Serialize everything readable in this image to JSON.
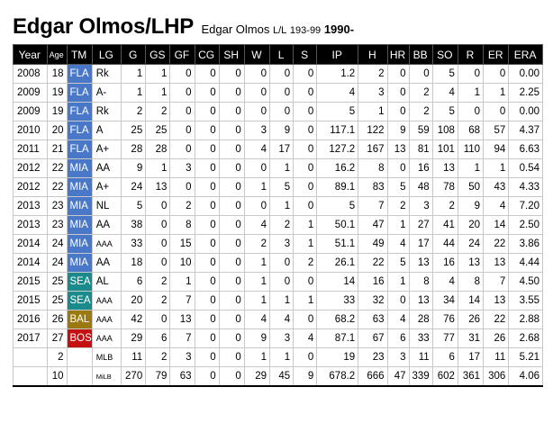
{
  "player": {
    "name": "Edgar Olmos/LHP",
    "sub_name": "Edgar Olmos",
    "bats_throws": "L/L",
    "height_weight": "193-99",
    "born": "1990-"
  },
  "columns": [
    "Year",
    "Age",
    "TM",
    "LG",
    "G",
    "GS",
    "GF",
    "CG",
    "SH",
    "W",
    "L",
    "S",
    "IP",
    "H",
    "HR",
    "BB",
    "SO",
    "R",
    "ER",
    "ERA"
  ],
  "team_colors": {
    "FLA": "#4a78c8",
    "MIA": "#4a78c8",
    "SEA": "#1a8a8a",
    "BAL": "#9a7a10",
    "BOS": "#c41010"
  },
  "rows": [
    {
      "year": "2008",
      "age": "18",
      "tm": "FLA",
      "lg": "Rk",
      "g": "1",
      "gs": "1",
      "gf": "0",
      "cg": "0",
      "sh": "0",
      "w": "0",
      "l": "0",
      "s": "0",
      "ip": "1.2",
      "h": "2",
      "hr": "0",
      "bb": "0",
      "so": "5",
      "r": "0",
      "er": "0",
      "era": "0.00"
    },
    {
      "year": "2009",
      "age": "19",
      "tm": "FLA",
      "lg": "A-",
      "g": "1",
      "gs": "1",
      "gf": "0",
      "cg": "0",
      "sh": "0",
      "w": "0",
      "l": "0",
      "s": "0",
      "ip": "4",
      "h": "3",
      "hr": "0",
      "bb": "2",
      "so": "4",
      "r": "1",
      "er": "1",
      "era": "2.25"
    },
    {
      "year": "2009",
      "age": "19",
      "tm": "FLA",
      "lg": "Rk",
      "g": "2",
      "gs": "2",
      "gf": "0",
      "cg": "0",
      "sh": "0",
      "w": "0",
      "l": "0",
      "s": "0",
      "ip": "5",
      "h": "1",
      "hr": "0",
      "bb": "2",
      "so": "5",
      "r": "0",
      "er": "0",
      "era": "0.00"
    },
    {
      "year": "2010",
      "age": "20",
      "tm": "FLA",
      "lg": "A",
      "g": "25",
      "gs": "25",
      "gf": "0",
      "cg": "0",
      "sh": "0",
      "w": "3",
      "l": "9",
      "s": "0",
      "ip": "117.1",
      "h": "122",
      "hr": "9",
      "bb": "59",
      "so": "108",
      "r": "68",
      "er": "57",
      "era": "4.37"
    },
    {
      "year": "2011",
      "age": "21",
      "tm": "FLA",
      "lg": "A+",
      "g": "28",
      "gs": "28",
      "gf": "0",
      "cg": "0",
      "sh": "0",
      "w": "4",
      "l": "17",
      "s": "0",
      "ip": "127.2",
      "h": "167",
      "hr": "13",
      "bb": "81",
      "so": "101",
      "r": "110",
      "er": "94",
      "era": "6.63"
    },
    {
      "year": "2012",
      "age": "22",
      "tm": "MIA",
      "lg": "AA",
      "g": "9",
      "gs": "1",
      "gf": "3",
      "cg": "0",
      "sh": "0",
      "w": "0",
      "l": "1",
      "s": "0",
      "ip": "16.2",
      "h": "8",
      "hr": "0",
      "bb": "16",
      "so": "13",
      "r": "1",
      "er": "1",
      "era": "0.54"
    },
    {
      "year": "2012",
      "age": "22",
      "tm": "MIA",
      "lg": "A+",
      "g": "24",
      "gs": "13",
      "gf": "0",
      "cg": "0",
      "sh": "0",
      "w": "1",
      "l": "5",
      "s": "0",
      "ip": "89.1",
      "h": "83",
      "hr": "5",
      "bb": "48",
      "so": "78",
      "r": "50",
      "er": "43",
      "era": "4.33"
    },
    {
      "year": "2013",
      "age": "23",
      "tm": "MIA",
      "lg": "NL",
      "g": "5",
      "gs": "0",
      "gf": "2",
      "cg": "0",
      "sh": "0",
      "w": "0",
      "l": "1",
      "s": "0",
      "ip": "5",
      "h": "7",
      "hr": "2",
      "bb": "3",
      "so": "2",
      "r": "9",
      "er": "4",
      "era": "7.20"
    },
    {
      "year": "2013",
      "age": "23",
      "tm": "MIA",
      "lg": "AA",
      "g": "38",
      "gs": "0",
      "gf": "8",
      "cg": "0",
      "sh": "0",
      "w": "4",
      "l": "2",
      "s": "1",
      "ip": "50.1",
      "h": "47",
      "hr": "1",
      "bb": "27",
      "so": "41",
      "r": "20",
      "er": "14",
      "era": "2.50"
    },
    {
      "year": "2014",
      "age": "24",
      "tm": "MIA",
      "lg": "AAA",
      "g": "33",
      "gs": "0",
      "gf": "15",
      "cg": "0",
      "sh": "0",
      "w": "2",
      "l": "3",
      "s": "1",
      "ip": "51.1",
      "h": "49",
      "hr": "4",
      "bb": "17",
      "so": "44",
      "r": "24",
      "er": "22",
      "era": "3.86"
    },
    {
      "year": "2014",
      "age": "24",
      "tm": "MIA",
      "lg": "AA",
      "g": "18",
      "gs": "0",
      "gf": "10",
      "cg": "0",
      "sh": "0",
      "w": "1",
      "l": "0",
      "s": "2",
      "ip": "26.1",
      "h": "22",
      "hr": "5",
      "bb": "13",
      "so": "16",
      "r": "13",
      "er": "13",
      "era": "4.44"
    },
    {
      "year": "2015",
      "age": "25",
      "tm": "SEA",
      "lg": "AL",
      "g": "6",
      "gs": "2",
      "gf": "1",
      "cg": "0",
      "sh": "0",
      "w": "1",
      "l": "0",
      "s": "0",
      "ip": "14",
      "h": "16",
      "hr": "1",
      "bb": "8",
      "so": "4",
      "r": "8",
      "er": "7",
      "era": "4.50"
    },
    {
      "year": "2015",
      "age": "25",
      "tm": "SEA",
      "lg": "AAA",
      "g": "20",
      "gs": "2",
      "gf": "7",
      "cg": "0",
      "sh": "0",
      "w": "1",
      "l": "1",
      "s": "1",
      "ip": "33",
      "h": "32",
      "hr": "0",
      "bb": "13",
      "so": "34",
      "r": "14",
      "er": "13",
      "era": "3.55"
    },
    {
      "year": "2016",
      "age": "26",
      "tm": "BAL",
      "lg": "AAA",
      "g": "42",
      "gs": "0",
      "gf": "13",
      "cg": "0",
      "sh": "0",
      "w": "4",
      "l": "4",
      "s": "0",
      "ip": "68.2",
      "h": "63",
      "hr": "4",
      "bb": "28",
      "so": "76",
      "r": "26",
      "er": "22",
      "era": "2.88"
    },
    {
      "year": "2017",
      "age": "27",
      "tm": "BOS",
      "lg": "AAA",
      "g": "29",
      "gs": "6",
      "gf": "7",
      "cg": "0",
      "sh": "0",
      "w": "9",
      "l": "3",
      "s": "4",
      "ip": "87.1",
      "h": "67",
      "hr": "6",
      "bb": "33",
      "so": "77",
      "r": "31",
      "er": "26",
      "era": "2.68"
    }
  ],
  "totals": [
    {
      "year": "",
      "age": "2",
      "tm": "",
      "lg": "MLB",
      "g": "11",
      "gs": "2",
      "gf": "3",
      "cg": "0",
      "sh": "0",
      "w": "1",
      "l": "1",
      "s": "0",
      "ip": "19",
      "h": "23",
      "hr": "3",
      "bb": "11",
      "so": "6",
      "r": "17",
      "er": "11",
      "era": "5.21"
    },
    {
      "year": "",
      "age": "10",
      "tm": "",
      "lg": "MiLB",
      "g": "270",
      "gs": "79",
      "gf": "63",
      "cg": "0",
      "sh": "0",
      "w": "29",
      "l": "45",
      "s": "9",
      "ip": "678.2",
      "h": "666",
      "hr": "47",
      "bb": "339",
      "so": "602",
      "r": "361",
      "er": "306",
      "era": "4.06"
    }
  ]
}
